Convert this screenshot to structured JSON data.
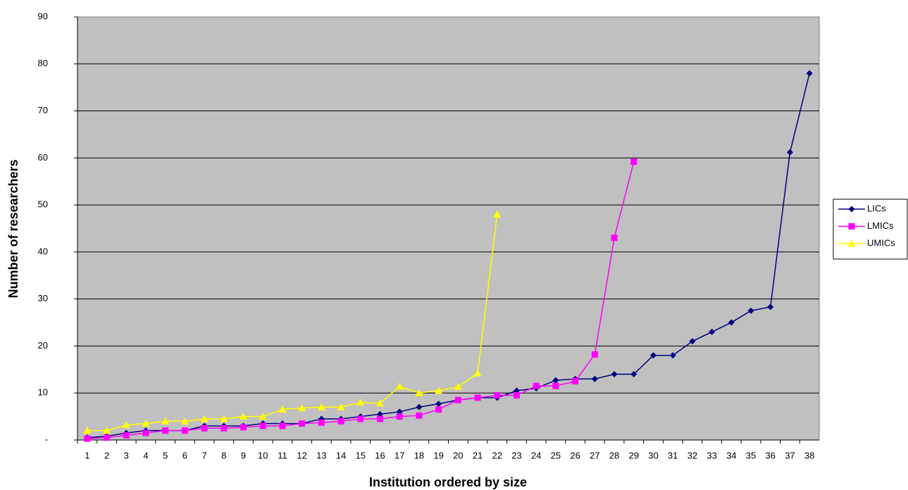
{
  "chart_data": {
    "type": "line",
    "x_label": "Institution ordered by size",
    "y_label": "Number of researchers",
    "categories": [
      "1",
      "2",
      "3",
      "4",
      "5",
      "6",
      "7",
      "8",
      "9",
      "10",
      "11",
      "12",
      "13",
      "14",
      "15",
      "16",
      "17",
      "18",
      "19",
      "20",
      "21",
      "22",
      "23",
      "24",
      "25",
      "26",
      "27",
      "28",
      "29",
      "30",
      "31",
      "32",
      "33",
      "34",
      "35",
      "36",
      "37",
      "38"
    ],
    "series": [
      {
        "name": "LICs",
        "color": "#000080",
        "marker": "diamond",
        "values": [
          0.5,
          0.8,
          1.5,
          2,
          2,
          2,
          3,
          3,
          3,
          3.5,
          3.5,
          3.5,
          4.5,
          4.5,
          5,
          5.5,
          6,
          7,
          7.7,
          8.5,
          9,
          9,
          10.5,
          11,
          12.7,
          13,
          13,
          14,
          14,
          18,
          18,
          21,
          23,
          25,
          27.5,
          28.3,
          61.2,
          78
        ]
      },
      {
        "name": "LMICs",
        "color": "#ff00ff",
        "marker": "square",
        "values": [
          0.3,
          0.5,
          1,
          1.5,
          2,
          2,
          2.5,
          2.5,
          2.7,
          3,
          3,
          3.5,
          3.7,
          4,
          4.5,
          4.5,
          5,
          5.2,
          6.5,
          8.5,
          9,
          9.5,
          9.5,
          11.5,
          11.5,
          12.5,
          18.2,
          43,
          59.2,
          null,
          null,
          null,
          null,
          null,
          null,
          null,
          null,
          null
        ]
      },
      {
        "name": "UMICs",
        "color": "#ffff00",
        "marker": "triangle",
        "values": [
          2,
          2,
          3.2,
          3.5,
          4,
          4,
          4.5,
          4.5,
          5,
          5,
          6.5,
          6.8,
          7,
          7,
          8,
          7.8,
          11.4,
          10,
          10.5,
          11.3,
          14.2,
          48,
          null,
          null,
          null,
          null,
          null,
          null,
          null,
          null,
          null,
          null,
          null,
          null,
          null,
          null,
          null,
          null
        ]
      }
    ],
    "ylim": [
      0,
      90
    ],
    "yticks": [
      {
        "value": 0,
        "label": "-"
      },
      10,
      20,
      30,
      40,
      50,
      60,
      70,
      80,
      90
    ],
    "grid": true,
    "legend": "right",
    "plot_background": "#c0c0c0"
  }
}
